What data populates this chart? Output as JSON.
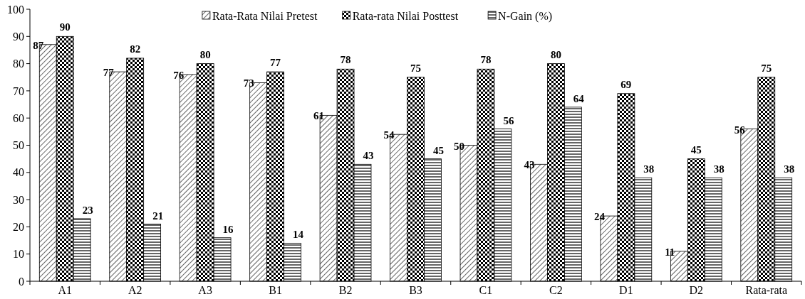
{
  "chart_data": {
    "type": "bar",
    "categories": [
      "A1",
      "A2",
      "A3",
      "B1",
      "B2",
      "B3",
      "C1",
      "C2",
      "D1",
      "D2",
      "Rata-rata"
    ],
    "series": [
      {
        "name": "Rata-Rata Nilai Pretest",
        "color": "#000000",
        "values": [
          87,
          77,
          76,
          73,
          61,
          54,
          50,
          43,
          24,
          11,
          56
        ]
      },
      {
        "name": "Rata-rata Nilai Posttest",
        "color": "#000000",
        "values": [
          90,
          82,
          80,
          77,
          78,
          75,
          78,
          80,
          69,
          45,
          75
        ]
      },
      {
        "name": "N-Gain (%)",
        "color": "#000000",
        "values": [
          23,
          21,
          16,
          14,
          43,
          45,
          56,
          64,
          38,
          38,
          38
        ]
      }
    ],
    "ylim": [
      0,
      100
    ],
    "yticks": [
      0,
      10,
      20,
      30,
      40,
      50,
      60,
      70,
      80,
      90,
      100
    ],
    "grid": false,
    "legend": "top",
    "data_labels": true
  }
}
